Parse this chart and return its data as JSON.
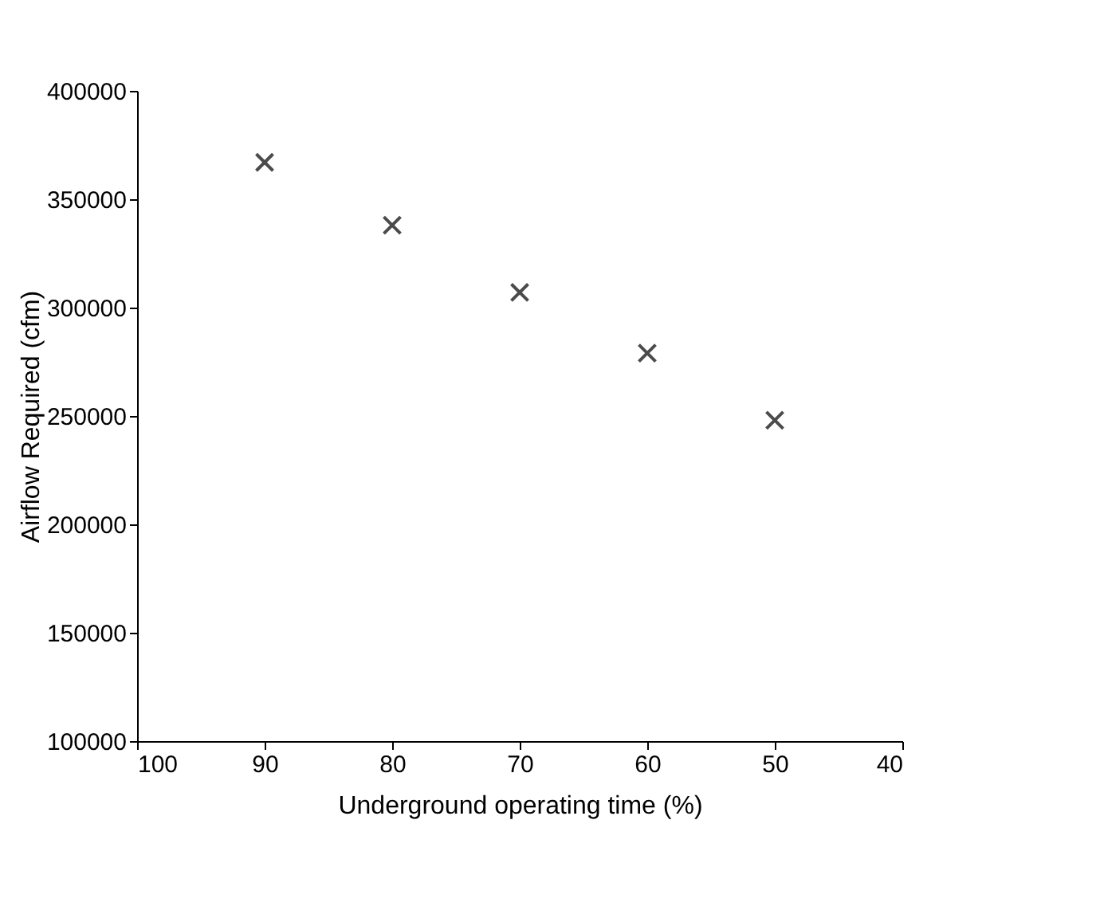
{
  "chart_data": {
    "type": "scatter",
    "xlabel": "Underground operating time  (%)",
    "ylabel": "Airflow Required (cfm)",
    "x": [
      90,
      80,
      70,
      60,
      50
    ],
    "series": [
      {
        "color": "#000000",
        "values": [
          367000,
          338000,
          307000,
          279000,
          248000
        ]
      }
    ],
    "xlim": [
      100,
      40
    ],
    "xticks": [
      100,
      90,
      80,
      70,
      60,
      50,
      40
    ],
    "ylim": [
      100000,
      400000
    ],
    "yticks": [
      100000,
      150000,
      200000,
      250000,
      300000,
      350000,
      400000
    ],
    "grid": false,
    "marker": "cross"
  }
}
